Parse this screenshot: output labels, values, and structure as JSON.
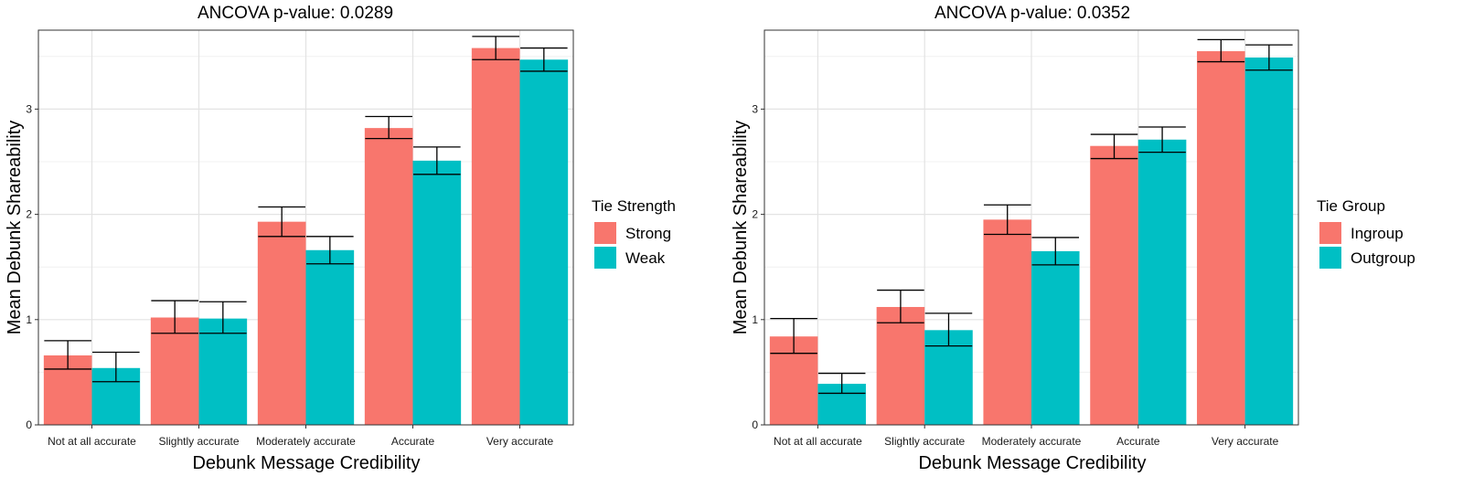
{
  "chart_data": [
    {
      "type": "bar",
      "title": "ANCOVA p-value: 0.0289",
      "xlabel": "Debunk Message Credibility",
      "ylabel": "Mean Debunk Shareability",
      "categories": [
        "Not at all accurate",
        "Slightly accurate",
        "Moderately accurate",
        "Accurate",
        "Very accurate"
      ],
      "ylim": [
        0,
        3.75
      ],
      "yticks": [
        0,
        1,
        2,
        3
      ],
      "legend_title": "Tie Strength",
      "legend_position": "right",
      "grid": true,
      "error_bars": true,
      "series": [
        {
          "name": "Strong",
          "color": "#F8766D",
          "values": [
            0.66,
            1.02,
            1.93,
            2.82,
            3.58
          ],
          "err_low": [
            0.53,
            0.87,
            1.79,
            2.72,
            3.47
          ],
          "err_high": [
            0.8,
            1.18,
            2.07,
            2.93,
            3.69
          ]
        },
        {
          "name": "Weak",
          "color": "#00BFC4",
          "values": [
            0.54,
            1.01,
            1.66,
            2.51,
            3.47
          ],
          "err_low": [
            0.41,
            0.87,
            1.53,
            2.38,
            3.36
          ],
          "err_high": [
            0.69,
            1.17,
            1.79,
            2.64,
            3.58
          ]
        }
      ]
    },
    {
      "type": "bar",
      "title": "ANCOVA p-value: 0.0352",
      "xlabel": "Debunk Message Credibility",
      "ylabel": "Mean Debunk Shareability",
      "categories": [
        "Not at all accurate",
        "Slightly accurate",
        "Moderately accurate",
        "Accurate",
        "Very accurate"
      ],
      "ylim": [
        0,
        3.75
      ],
      "yticks": [
        0,
        1,
        2,
        3
      ],
      "legend_title": "Tie Group",
      "legend_position": "right",
      "grid": true,
      "error_bars": true,
      "series": [
        {
          "name": "Ingroup",
          "color": "#F8766D",
          "values": [
            0.84,
            1.12,
            1.95,
            2.65,
            3.55
          ],
          "err_low": [
            0.68,
            0.97,
            1.81,
            2.53,
            3.45
          ],
          "err_high": [
            1.01,
            1.28,
            2.09,
            2.76,
            3.66
          ]
        },
        {
          "name": "Outgroup",
          "color": "#00BFC4",
          "values": [
            0.39,
            0.9,
            1.65,
            2.71,
            3.49
          ],
          "err_low": [
            0.3,
            0.75,
            1.52,
            2.59,
            3.37
          ],
          "err_high": [
            0.49,
            1.06,
            1.78,
            2.83,
            3.61
          ]
        }
      ]
    }
  ]
}
